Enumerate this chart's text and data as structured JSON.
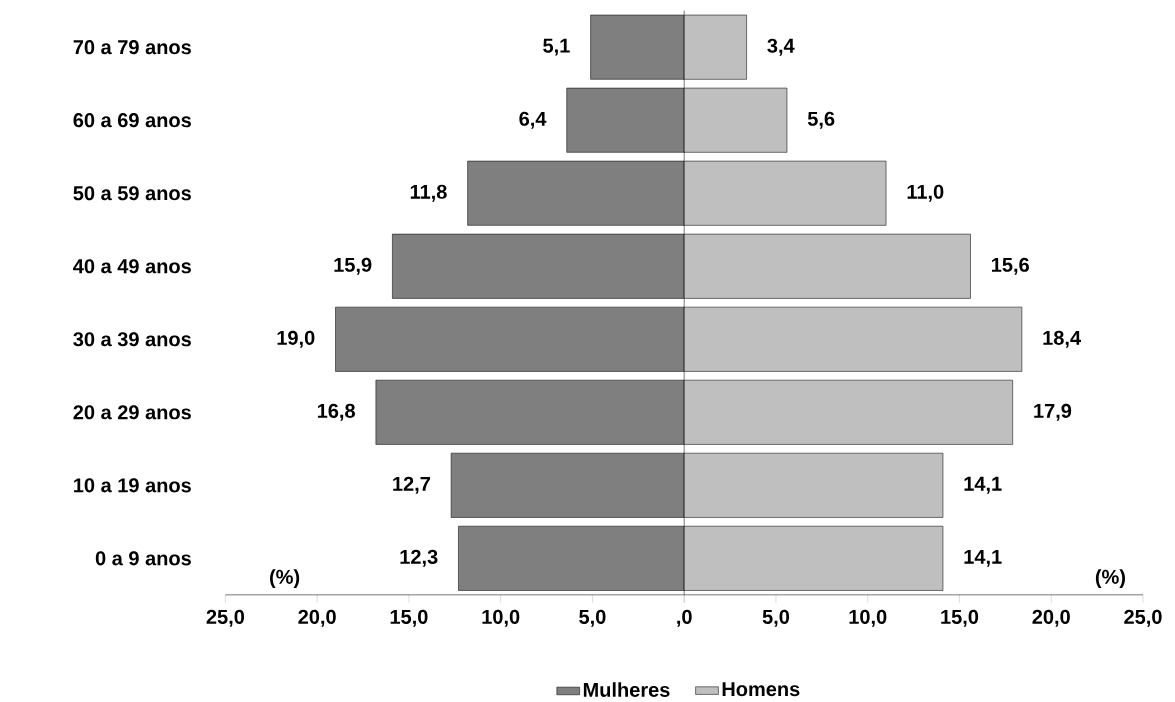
{
  "chart_data": [
    {
      "type": "bar",
      "orientation": "horizontal",
      "categories": [
        "70 a 79 anos",
        "60 a 69 anos",
        "50 a 59 anos",
        "40 a 49 anos",
        "30 a 39 anos",
        "20 a 29 anos",
        "10 a 19 anos",
        "0 a 9 anos"
      ],
      "series": [
        {
          "name": "Mulheres",
          "color": "#7f7f7f",
          "values": [
            5.1,
            6.4,
            11.8,
            15.9,
            19.0,
            16.8,
            12.7,
            12.3
          ],
          "value_labels": [
            "5,1",
            "6,4",
            "11,8",
            "15,9",
            "19,0",
            "16,8",
            "12,7",
            "12,3"
          ]
        }
      ],
      "xlim": [
        25,
        0
      ],
      "xticks": [
        {
          "value": 25,
          "label": "25,0"
        },
        {
          "value": 20,
          "label": "20,0"
        },
        {
          "value": 15,
          "label": "15,0"
        },
        {
          "value": 10,
          "label": "10,0"
        },
        {
          "value": 5,
          "label": "5,0"
        },
        {
          "value": 0,
          "label": ",0"
        }
      ],
      "annotations": [
        "(%)"
      ],
      "legend": "bottom right"
    },
    {
      "type": "bar",
      "orientation": "horizontal",
      "categories": [
        null,
        null,
        null,
        null,
        null,
        null,
        null,
        null
      ],
      "series": [
        {
          "name": "Homens",
          "color": "#bfbfbf",
          "values": [
            3.4,
            5.6,
            11.0,
            15.6,
            18.4,
            17.9,
            14.1,
            14.1
          ],
          "value_labels": [
            "3,4",
            "5,6",
            "11,0",
            "15,6",
            "18,4",
            "17,9",
            "14,1",
            "14,1"
          ]
        }
      ],
      "xlim": [
        0,
        25
      ],
      "xticks": [
        {
          "value": 0,
          "label": null
        },
        {
          "value": 5,
          "label": "5,0"
        },
        {
          "value": 10,
          "label": "10,0"
        },
        {
          "value": 15,
          "label": "15,0"
        },
        {
          "value": 20,
          "label": "20,0"
        },
        {
          "value": 25,
          "label": "25,0"
        }
      ],
      "tick_labels": "x",
      "annotations": [
        "(%)"
      ],
      "legend": "bottom left"
    }
  ]
}
